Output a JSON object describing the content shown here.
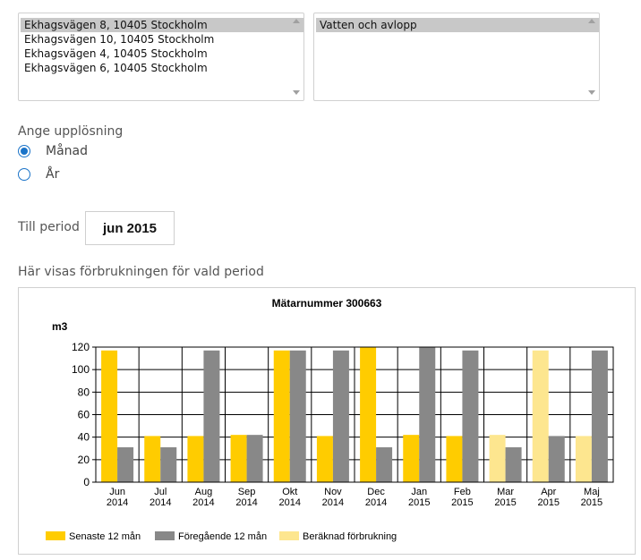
{
  "addresses": {
    "items": [
      {
        "label": "Ekhagsvägen 8, 10405 Stockholm",
        "selected": true
      },
      {
        "label": "Ekhagsvägen 10, 10405 Stockholm",
        "selected": false
      },
      {
        "label": "Ekhagsvägen 4, 10405 Stockholm",
        "selected": false
      },
      {
        "label": "Ekhagsvägen 6, 10405 Stockholm",
        "selected": false
      }
    ]
  },
  "services": {
    "items": [
      {
        "label": "Vatten och avlopp",
        "selected": true
      }
    ]
  },
  "resolution": {
    "heading": "Ange upplösning",
    "options": [
      {
        "label": "Månad",
        "checked": true
      },
      {
        "label": "År",
        "checked": false
      }
    ]
  },
  "period": {
    "label": "Till period",
    "value": "jun 2015"
  },
  "consumption": {
    "heading": "Här visas förbrukningen för vald period"
  },
  "chart_data": {
    "type": "bar",
    "title": "Mätarnummer 300663",
    "ylabel": "m3",
    "ylim": [
      0,
      120
    ],
    "yticks": [
      0,
      20,
      40,
      60,
      80,
      100,
      120
    ],
    "grid": true,
    "legend_position": "bottom-left",
    "categories": [
      "Jun\n2014",
      "Jul\n2014",
      "Aug\n2014",
      "Sep\n2014",
      "Okt\n2014",
      "Nov\n2014",
      "Dec\n2014",
      "Jan\n2015",
      "Feb\n2015",
      "Mar\n2015",
      "Apr\n2015",
      "Maj\n2015"
    ],
    "series": [
      {
        "name": "Senaste 12 mån",
        "color": "#ffcc00",
        "values": [
          117,
          41,
          41,
          42,
          117,
          41,
          120,
          42,
          41,
          null,
          null,
          null
        ]
      },
      {
        "name": "Föregående 12 mån",
        "color": "#888888",
        "values": [
          31,
          31,
          117,
          42,
          117,
          117,
          31,
          120,
          117,
          31,
          41,
          117
        ]
      },
      {
        "name": "Beräknad förbrukning",
        "color": "#fde68f",
        "values": [
          null,
          null,
          null,
          null,
          null,
          null,
          null,
          null,
          null,
          42,
          117,
          41
        ]
      }
    ]
  }
}
